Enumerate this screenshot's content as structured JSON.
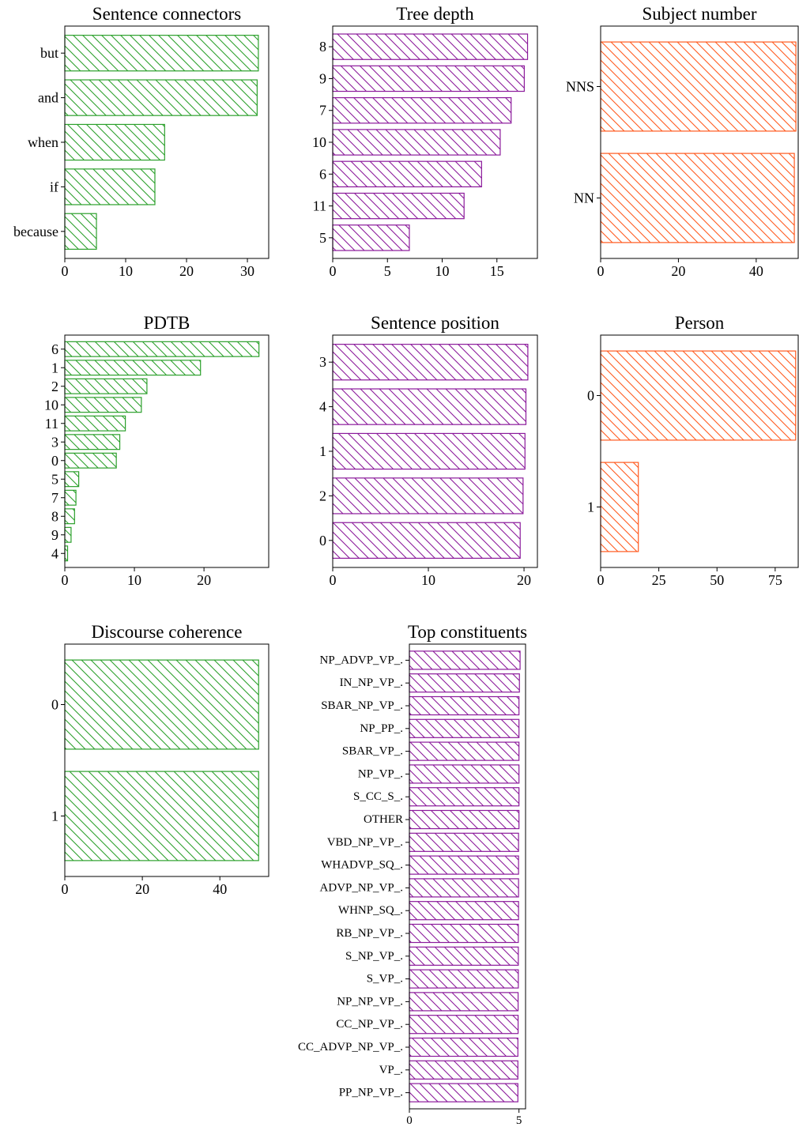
{
  "colors": {
    "green": "#2ca02c",
    "purple": "#8b1a9b",
    "orange": "#ff5a1f",
    "axis": "#000000"
  },
  "chart_data": [
    {
      "type": "bar",
      "orientation": "horizontal",
      "title": "Sentence connectors",
      "categories": [
        "but",
        "and",
        "when",
        "if",
        "because"
      ],
      "values": [
        31.8,
        31.6,
        16.4,
        14.8,
        5.2
      ],
      "xlim": [
        0,
        33.5
      ],
      "xticks": [
        0,
        10,
        20,
        30
      ],
      "color": "green",
      "hatch": "diagonal"
    },
    {
      "type": "bar",
      "orientation": "horizontal",
      "title": "Tree depth",
      "categories": [
        "8",
        "9",
        "7",
        "10",
        "6",
        "11",
        "5"
      ],
      "values": [
        17.8,
        17.5,
        16.3,
        15.3,
        13.6,
        12.0,
        7.0
      ],
      "xlim": [
        0,
        18.7
      ],
      "xticks": [
        0,
        5,
        10,
        15
      ],
      "color": "purple",
      "hatch": "diagonal"
    },
    {
      "type": "bar",
      "orientation": "horizontal",
      "title": "Subject number",
      "categories": [
        "NNS",
        "NN"
      ],
      "values": [
        50.2,
        49.8
      ],
      "xlim": [
        0,
        50.8
      ],
      "xticks": [
        0,
        20,
        40
      ],
      "color": "orange",
      "hatch": "diagonal"
    },
    {
      "type": "bar",
      "orientation": "horizontal",
      "title": "PDTB",
      "categories": [
        "6",
        "1",
        "2",
        "10",
        "11",
        "3",
        "0",
        "5",
        "7",
        "8",
        "9",
        "4"
      ],
      "values": [
        27.9,
        19.5,
        11.8,
        11.0,
        8.7,
        7.9,
        7.4,
        2.0,
        1.6,
        1.4,
        0.9,
        0.4
      ],
      "xlim": [
        0,
        29.3
      ],
      "xticks": [
        0,
        10,
        20
      ],
      "color": "green",
      "hatch": "diagonal"
    },
    {
      "type": "bar",
      "orientation": "horizontal",
      "title": "Sentence position",
      "categories": [
        "3",
        "4",
        "1",
        "2",
        "0"
      ],
      "values": [
        20.4,
        20.2,
        20.1,
        19.9,
        19.6
      ],
      "xlim": [
        0,
        21.4
      ],
      "xticks": [
        0,
        10,
        20
      ],
      "color": "purple",
      "hatch": "diagonal"
    },
    {
      "type": "bar",
      "orientation": "horizontal",
      "title": "Person",
      "categories": [
        "0",
        "1"
      ],
      "values": [
        83.8,
        16.2
      ],
      "xlim": [
        0,
        84.9
      ],
      "xticks": [
        0,
        25,
        50,
        75
      ],
      "color": "orange",
      "hatch": "diagonal"
    },
    {
      "type": "bar",
      "orientation": "horizontal",
      "title": "Discourse coherence",
      "categories": [
        "0",
        "1"
      ],
      "values": [
        50.0,
        50.0
      ],
      "xlim": [
        0,
        52.6
      ],
      "xticks": [
        0,
        20,
        40
      ],
      "color": "green",
      "hatch": "diagonal"
    },
    {
      "type": "bar",
      "orientation": "horizontal",
      "title": "Top constituents",
      "categories": [
        "NP_ADVP_VP_.",
        "IN_NP_VP_.",
        "SBAR_NP_VP_.",
        "NP_PP_.",
        "SBAR_VP_.",
        "NP_VP_.",
        "S_CC_S_.",
        "OTHER",
        "VBD_NP_VP_.",
        "WHADVP_SQ_.",
        "ADVP_NP_VP_.",
        "WHNP_SQ_.",
        "RB_NP_VP_.",
        "S_NP_VP_.",
        "S_VP_.",
        "NP_NP_VP_.",
        "CC_NP_VP_.",
        "CC_ADVP_NP_VP_.",
        "VP_.",
        "PP_NP_VP_."
      ],
      "values": [
        5.05,
        5.02,
        5.0,
        5.0,
        5.0,
        5.0,
        5.0,
        5.0,
        4.98,
        4.98,
        4.98,
        4.98,
        4.97,
        4.97,
        4.97,
        4.96,
        4.96,
        4.95,
        4.95,
        4.95
      ],
      "xlim": [
        0,
        5.3
      ],
      "xticks": [
        0,
        5
      ],
      "color": "purple",
      "hatch": "diagonal"
    }
  ]
}
